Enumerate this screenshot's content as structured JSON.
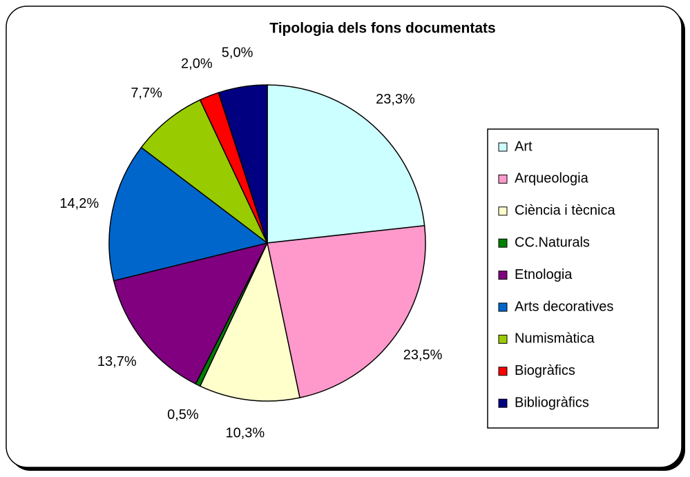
{
  "chart_data": {
    "type": "pie",
    "title": "Tipologia dels fons documentats",
    "categories": [
      "Art",
      "Arqueologia",
      "Ciència i tècnica",
      "CC.Naturals",
      "Etnologia",
      "Arts decoratives",
      "Numismàtica",
      "Biogràfics",
      "Bibliogràfics"
    ],
    "values": [
      23.3,
      23.5,
      10.3,
      0.5,
      13.7,
      14.2,
      7.7,
      2.0,
      5.0
    ],
    "value_labels": [
      "23,3%",
      "23,5%",
      "10,3%",
      "0,5%",
      "13,7%",
      "14,2%",
      "7,7%",
      "2,0%",
      "5,0%"
    ],
    "colors": [
      "#ccffff",
      "#ff99cc",
      "#ffffcc",
      "#008000",
      "#800080",
      "#0066cc",
      "#99cc00",
      "#ff0000",
      "#000080"
    ],
    "legend": "right"
  }
}
